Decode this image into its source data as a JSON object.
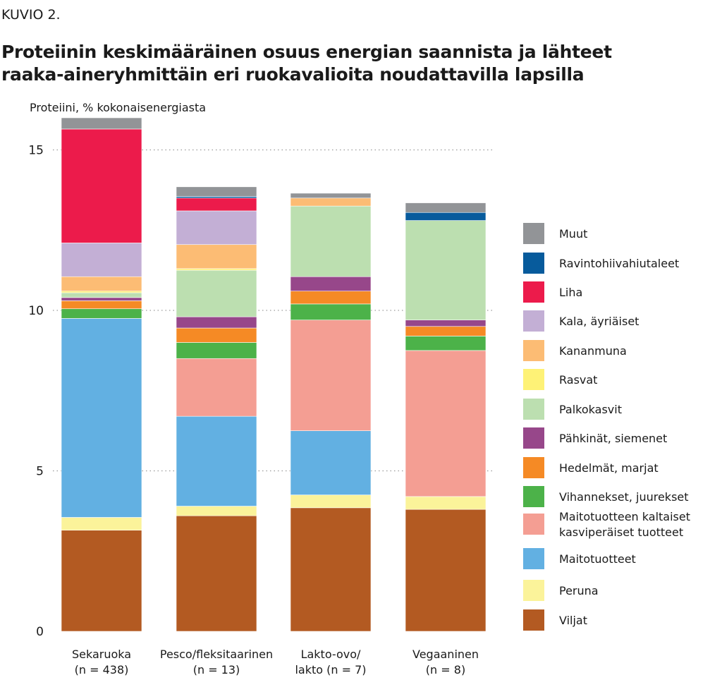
{
  "figure": {
    "label": "KUVIO 2.",
    "title_lines": [
      "Proteiinin keskimääräinen osuus energian saannista ja lähteet",
      "raaka-aineryhmittäin eri ruokavalioita noudattavilla lapsilla"
    ]
  },
  "chart_data": {
    "type": "bar",
    "stacked": true,
    "ylabel": "Proteiini, % kokonaisenergiasta",
    "ylim": [
      0,
      16
    ],
    "yticks": [
      0,
      5,
      10,
      15
    ],
    "grid": "horizontal-dotted",
    "legend_position": "right",
    "categories": [
      [
        "Sekaruoka",
        "(n = 438)"
      ],
      [
        "Pesco/fleksitaarinen",
        "(n = 13)"
      ],
      [
        "Lakto-ovo/",
        "lakto (n = 7)"
      ],
      [
        "Vegaaninen",
        "(n = 8)"
      ]
    ],
    "series": [
      {
        "name": "Viljat",
        "color": "#b35a22",
        "values": [
          3.15,
          3.6,
          3.85,
          3.8
        ]
      },
      {
        "name": "Peruna",
        "color": "#fbf39a",
        "values": [
          0.4,
          0.3,
          0.4,
          0.4
        ]
      },
      {
        "name": "Maitotuotteet",
        "color": "#62b0e2",
        "values": [
          6.2,
          2.8,
          2.0,
          0.0
        ]
      },
      {
        "name": [
          "Maitotuotteen kaltaiset",
          "kasviperäiset tuotteet"
        ],
        "color": "#f49e93",
        "values": [
          0.0,
          1.8,
          3.45,
          4.55
        ]
      },
      {
        "name": "Vihannekset, juurekset",
        "color": "#4cb249",
        "values": [
          0.3,
          0.5,
          0.5,
          0.45
        ]
      },
      {
        "name": "Hedelmät, marjat",
        "color": "#f58a25",
        "values": [
          0.25,
          0.45,
          0.4,
          0.3
        ]
      },
      {
        "name": "Pähkinät, siemenet",
        "color": "#97478a",
        "values": [
          0.1,
          0.35,
          0.45,
          0.2
        ]
      },
      {
        "name": "Palkokasvit",
        "color": "#bcdfb0",
        "values": [
          0.15,
          1.45,
          2.2,
          3.1
        ]
      },
      {
        "name": "Rasvat",
        "color": "#fef276",
        "values": [
          0.05,
          0.05,
          0.0,
          0.0
        ]
      },
      {
        "name": "Kananmuna",
        "color": "#fcbc74",
        "values": [
          0.45,
          0.75,
          0.25,
          0.0
        ]
      },
      {
        "name": "Kala, äyriäiset",
        "color": "#c3afd5",
        "values": [
          1.05,
          1.05,
          0.0,
          0.0
        ]
      },
      {
        "name": "Liha",
        "color": "#ec1b4b",
        "values": [
          3.55,
          0.4,
          0.0,
          0.0
        ]
      },
      {
        "name": "Ravintohiivahiutaleet",
        "color": "#075b9c",
        "values": [
          0.0,
          0.05,
          0.0,
          0.25
        ]
      },
      {
        "name": "Muut",
        "color": "#929497",
        "values": [
          0.35,
          0.3,
          0.15,
          0.3
        ]
      }
    ]
  }
}
